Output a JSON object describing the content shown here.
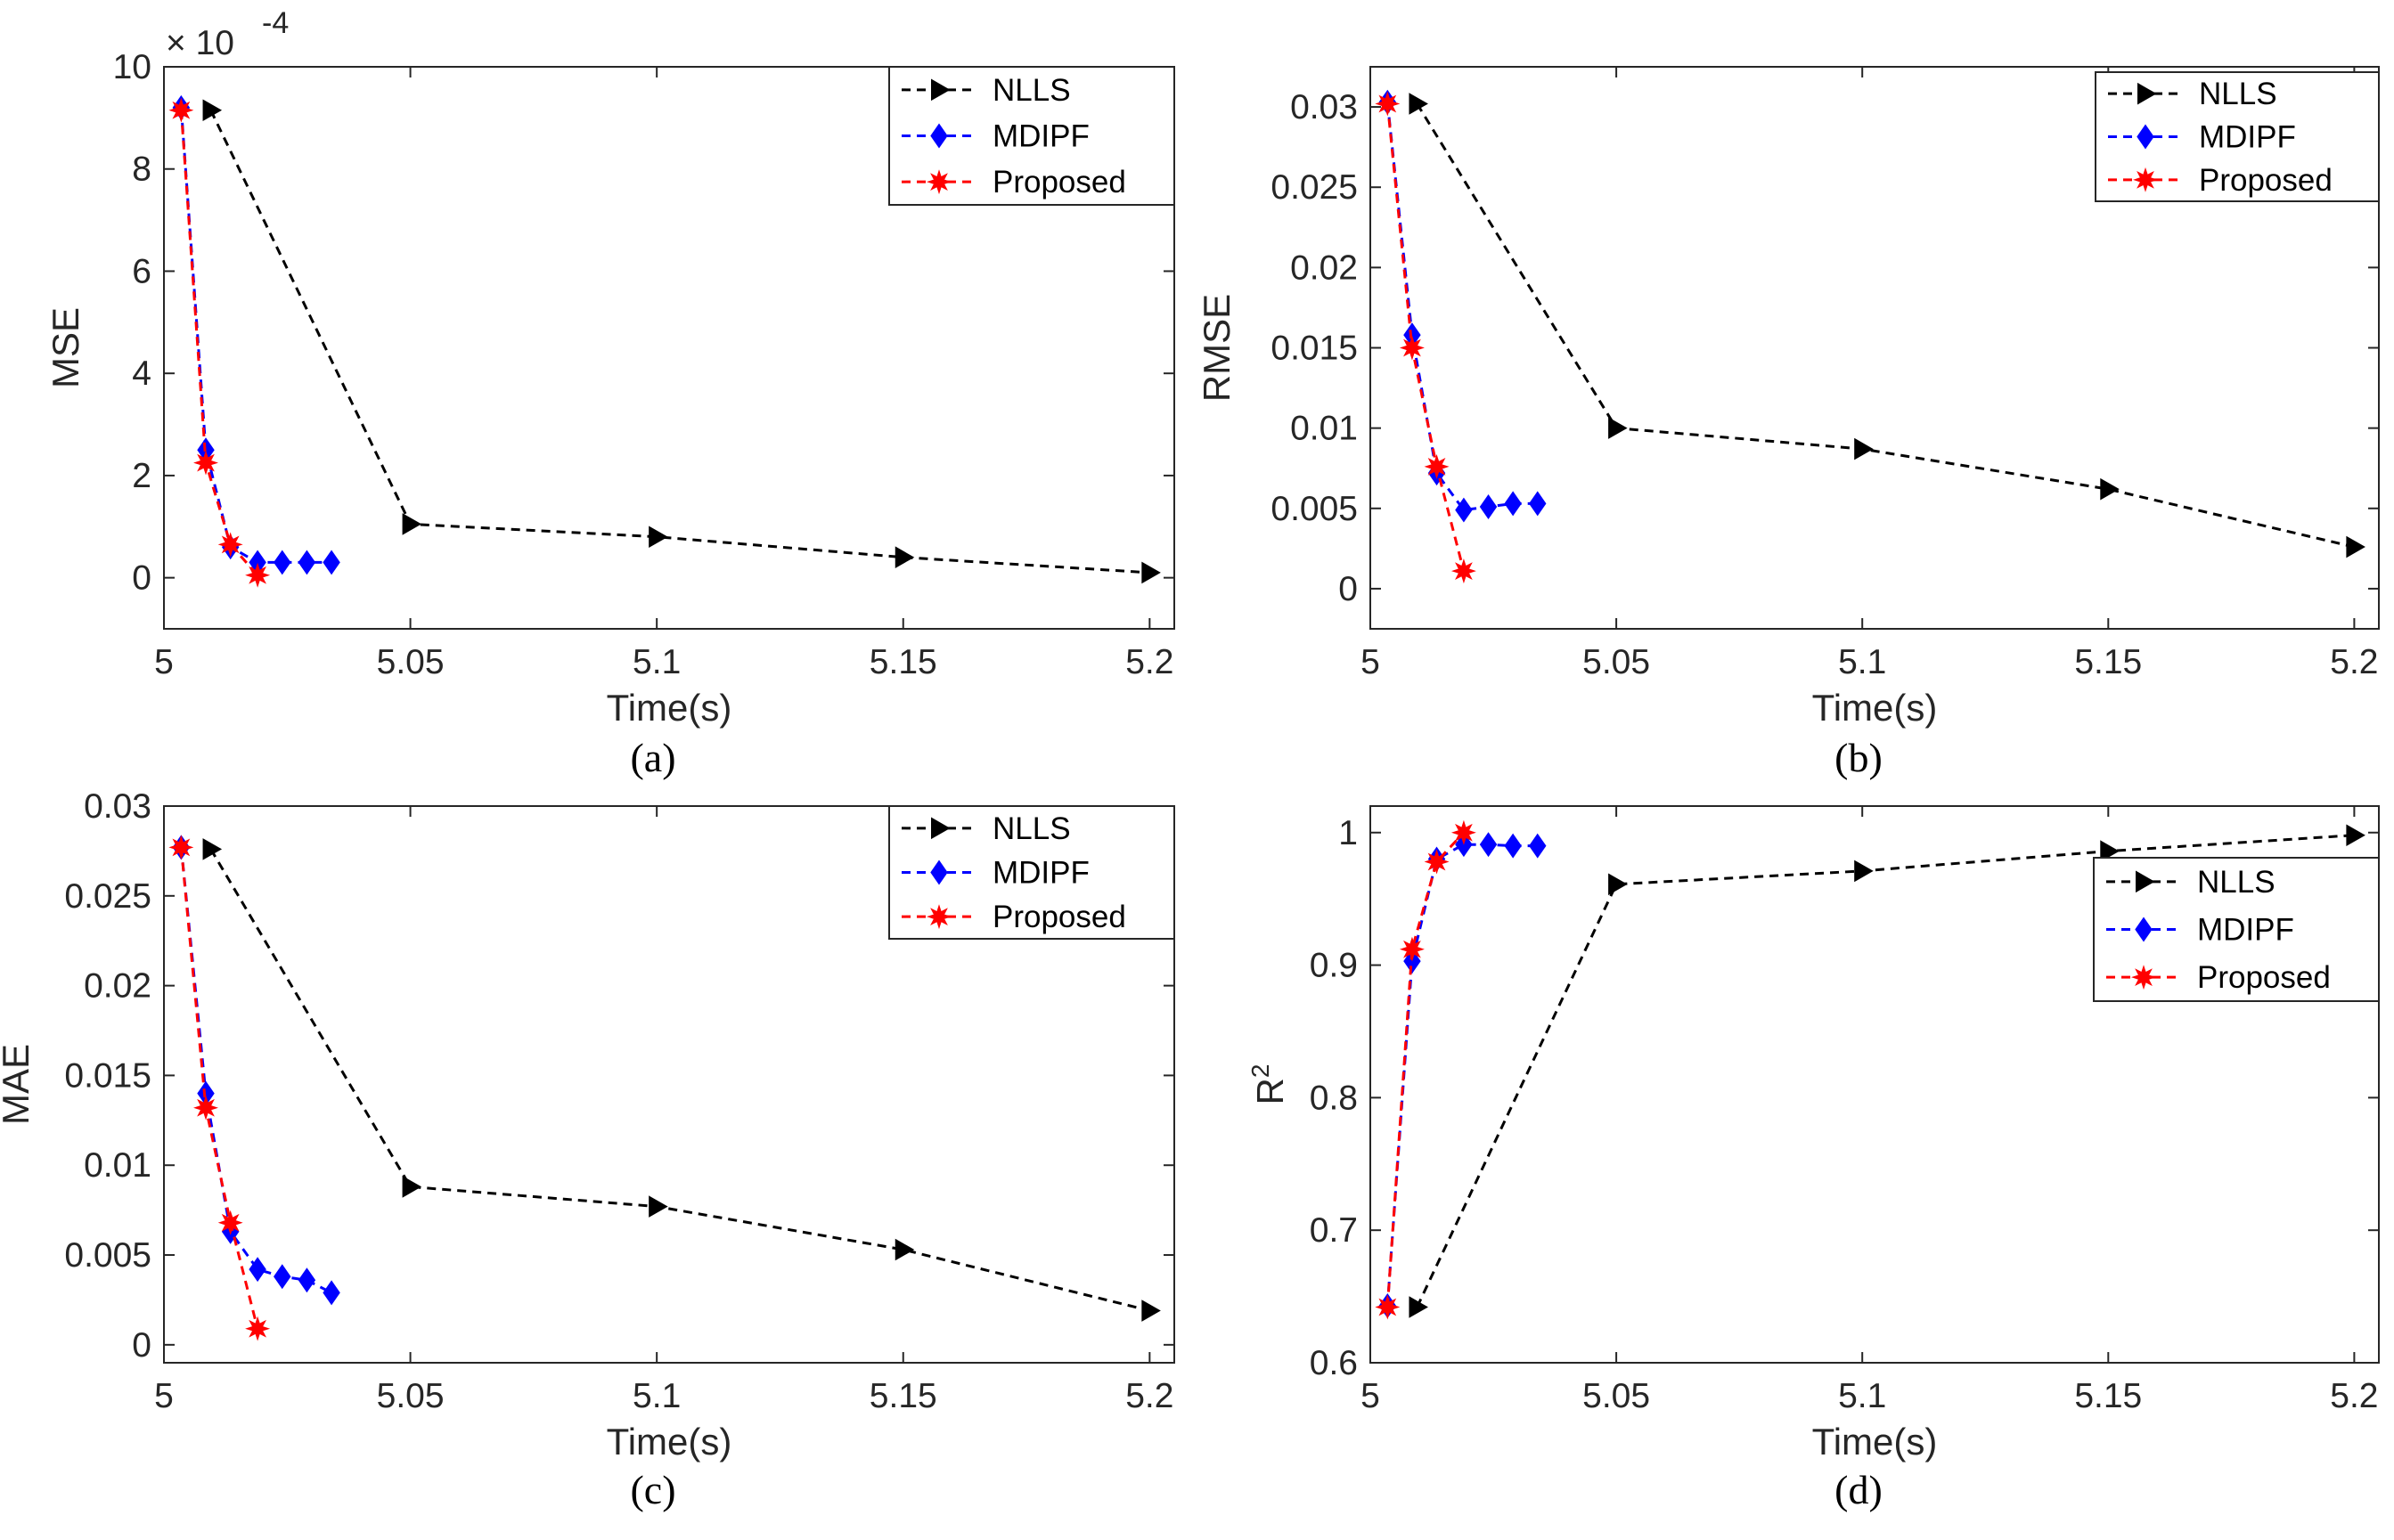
{
  "chart_data": [
    {
      "type": "line",
      "panel": "a",
      "caption": "(a)",
      "title": "",
      "xlabel": "Time(s)",
      "ylabel": "MSE",
      "ylabel_sup": "",
      "exponent_label": "× 10",
      "exponent_power": "-4",
      "xlim": [
        5,
        5.205
      ],
      "ylim": [
        -1,
        10
      ],
      "xticks": [
        5,
        5.05,
        5.1,
        5.15,
        5.2
      ],
      "xtick_labels": [
        "5",
        "5.05",
        "5.1",
        "5.15",
        "5.2"
      ],
      "yticks": [
        0,
        2,
        4,
        6,
        8,
        10
      ],
      "ytick_labels": [
        "0",
        "2",
        "4",
        "6",
        "8",
        "10"
      ],
      "legend_position": "top-right",
      "series": [
        {
          "name": "NLLS",
          "color": "#000000",
          "marker": "triangle-right",
          "x": [
            5.0095,
            5.05,
            5.1,
            5.15,
            5.2
          ],
          "y": [
            9.15,
            1.05,
            0.8,
            0.4,
            0.1
          ]
        },
        {
          "name": "MDIPF",
          "color": "#0000ff",
          "marker": "diamond",
          "x": [
            5.0035,
            5.0085,
            5.0135,
            5.019,
            5.024,
            5.029,
            5.034
          ],
          "y": [
            9.2,
            2.5,
            0.6,
            0.3,
            0.3,
            0.3,
            0.3
          ]
        },
        {
          "name": "Proposed",
          "color": "#ff0000",
          "marker": "star",
          "x": [
            5.0035,
            5.0085,
            5.0135,
            5.019
          ],
          "y": [
            9.15,
            2.25,
            0.65,
            0.05
          ]
        }
      ]
    },
    {
      "type": "line",
      "panel": "b",
      "caption": "(b)",
      "title": "",
      "xlabel": "Time(s)",
      "ylabel": "RMSE",
      "ylabel_sup": "",
      "exponent_label": "",
      "exponent_power": "",
      "xlim": [
        5,
        5.205
      ],
      "ylim": [
        -0.0025,
        0.0325
      ],
      "xticks": [
        5,
        5.05,
        5.1,
        5.15,
        5.2
      ],
      "xtick_labels": [
        "5",
        "5.05",
        "5.1",
        "5.15",
        "5.2"
      ],
      "yticks": [
        0,
        0.005,
        0.01,
        0.015,
        0.02,
        0.025,
        0.03
      ],
      "ytick_labels": [
        "0",
        "0.005",
        "0.01",
        "0.015",
        "0.02",
        "0.025",
        "0.03"
      ],
      "legend_position": "top-right",
      "series": [
        {
          "name": "NLLS",
          "color": "#000000",
          "marker": "triangle-right",
          "x": [
            5.0095,
            5.05,
            5.1,
            5.15,
            5.2
          ],
          "y": [
            0.0302,
            0.01,
            0.0087,
            0.0062,
            0.0026
          ]
        },
        {
          "name": "MDIPF",
          "color": "#0000ff",
          "marker": "diamond",
          "x": [
            5.0035,
            5.0085,
            5.0135,
            5.019,
            5.024,
            5.029,
            5.034
          ],
          "y": [
            0.0303,
            0.0158,
            0.0072,
            0.0049,
            0.0051,
            0.0053,
            0.0053
          ]
        },
        {
          "name": "Proposed",
          "color": "#ff0000",
          "marker": "star",
          "x": [
            5.0035,
            5.0085,
            5.0135,
            5.019
          ],
          "y": [
            0.0302,
            0.015,
            0.0076,
            0.0011
          ]
        }
      ]
    },
    {
      "type": "line",
      "panel": "c",
      "caption": "(c)",
      "title": "",
      "xlabel": "Time(s)",
      "ylabel": "MAE",
      "ylabel_sup": "",
      "exponent_label": "",
      "exponent_power": "",
      "xlim": [
        5,
        5.205
      ],
      "ylim": [
        -0.001,
        0.03
      ],
      "xticks": [
        5,
        5.05,
        5.1,
        5.15,
        5.2
      ],
      "xtick_labels": [
        "5",
        "5.05",
        "5.1",
        "5.15",
        "5.2"
      ],
      "yticks": [
        0,
        0.005,
        0.01,
        0.015,
        0.02,
        0.025,
        0.03
      ],
      "ytick_labels": [
        "0",
        "0.005",
        "0.01",
        "0.015",
        "0.02",
        "0.025",
        "0.03"
      ],
      "legend_position": "top-right",
      "series": [
        {
          "name": "NLLS",
          "color": "#000000",
          "marker": "triangle-right",
          "x": [
            5.0095,
            5.05,
            5.1,
            5.15,
            5.2
          ],
          "y": [
            0.0276,
            0.0088,
            0.0077,
            0.0053,
            0.0019
          ]
        },
        {
          "name": "MDIPF",
          "color": "#0000ff",
          "marker": "diamond",
          "x": [
            5.0035,
            5.0085,
            5.0135,
            5.019,
            5.024,
            5.029,
            5.034
          ],
          "y": [
            0.0277,
            0.014,
            0.0063,
            0.0042,
            0.0038,
            0.0036,
            0.0029
          ]
        },
        {
          "name": "Proposed",
          "color": "#ff0000",
          "marker": "star",
          "x": [
            5.0035,
            5.0085,
            5.0135,
            5.019
          ],
          "y": [
            0.0277,
            0.0132,
            0.0068,
            0.0009
          ]
        }
      ]
    },
    {
      "type": "line",
      "panel": "d",
      "caption": "(d)",
      "title": "",
      "xlabel": "Time(s)",
      "ylabel": "R",
      "ylabel_sup": "2",
      "exponent_label": "",
      "exponent_power": "",
      "xlim": [
        5,
        5.205
      ],
      "ylim": [
        0.6,
        1.02
      ],
      "xticks": [
        5,
        5.05,
        5.1,
        5.15,
        5.2
      ],
      "xtick_labels": [
        "5",
        "5.05",
        "5.1",
        "5.15",
        "5.2"
      ],
      "yticks": [
        0.6,
        0.7,
        0.8,
        0.9,
        1
      ],
      "ytick_labels": [
        "0.6",
        "0.7",
        "0.8",
        "0.9",
        "1"
      ],
      "legend_position": "right",
      "series": [
        {
          "name": "NLLS",
          "color": "#000000",
          "marker": "triangle-right",
          "x": [
            5.0095,
            5.05,
            5.1,
            5.15,
            5.2
          ],
          "y": [
            0.642,
            0.961,
            0.971,
            0.986,
            0.998
          ]
        },
        {
          "name": "MDIPF",
          "color": "#0000ff",
          "marker": "diamond",
          "x": [
            5.0035,
            5.0085,
            5.0135,
            5.019,
            5.024,
            5.029,
            5.034
          ],
          "y": [
            0.643,
            0.903,
            0.98,
            0.991,
            0.991,
            0.99,
            0.99
          ]
        },
        {
          "name": "Proposed",
          "color": "#ff0000",
          "marker": "star",
          "x": [
            5.0035,
            5.0085,
            5.0135,
            5.019
          ],
          "y": [
            0.642,
            0.912,
            0.978,
            1.0
          ]
        }
      ]
    }
  ]
}
